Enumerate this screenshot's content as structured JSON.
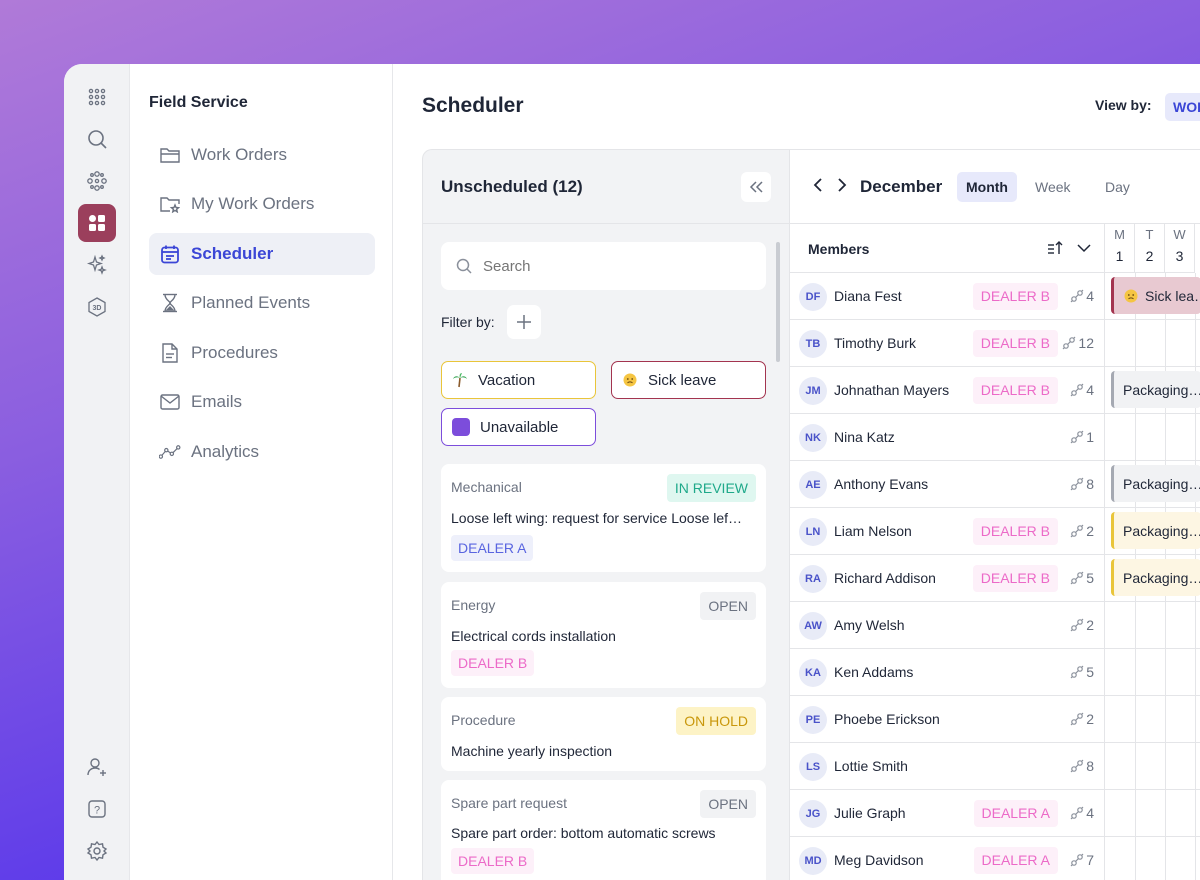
{
  "app": {
    "section_title": "Field Service"
  },
  "rail": {
    "icons": [
      "apps-grid-icon",
      "search-icon",
      "modules-icon",
      "dashboard-icon",
      "sparkles-icon",
      "3d-icon"
    ],
    "bottom_icons": [
      "add-user-icon",
      "help-icon",
      "settings-icon"
    ]
  },
  "nav": {
    "items": [
      {
        "label": "Work Orders",
        "icon": "folder-icon"
      },
      {
        "label": "My Work Orders",
        "icon": "folder-star-icon"
      },
      {
        "label": "Scheduler",
        "icon": "calendar-icon"
      },
      {
        "label": "Planned Events",
        "icon": "hourglass-icon"
      },
      {
        "label": "Procedures",
        "icon": "document-icon"
      },
      {
        "label": "Emails",
        "icon": "mail-icon"
      },
      {
        "label": "Analytics",
        "icon": "analytics-icon"
      }
    ]
  },
  "header": {
    "title": "Scheduler",
    "viewby_label": "View by:",
    "viewby_value": "WOR"
  },
  "unscheduled": {
    "title": "Unscheduled (12)",
    "search_placeholder": "Search",
    "filter_label": "Filter by:",
    "chips": [
      {
        "label": "Vacation",
        "icon": "palm-tree-icon",
        "color": "#e9c53a"
      },
      {
        "label": "Sick leave",
        "icon": "sick-face-icon",
        "color": "#a3344f"
      },
      {
        "label": "Unavailable",
        "icon": "purple-square-icon",
        "color": "#7c4ddb"
      }
    ],
    "cards": [
      {
        "category": "Mechanical",
        "status": "IN REVIEW",
        "description": "Loose left wing: request for service Loose lef…",
        "tag": "DEALER A"
      },
      {
        "category": "Energy",
        "status": "OPEN",
        "description": "Electrical cords installation",
        "tag": "DEALER B"
      },
      {
        "category": "Procedure",
        "status": "ON HOLD",
        "description": "Machine yearly inspection",
        "tag": ""
      },
      {
        "category": "Spare part request",
        "status": "OPEN",
        "description": "Spare part order: bottom automatic screws",
        "tag": "DEALER B"
      }
    ]
  },
  "calendar": {
    "month": "December",
    "tabs": [
      "Month",
      "Week",
      "Day"
    ],
    "members_title": "Members",
    "days": [
      {
        "letter": "M",
        "num": "1"
      },
      {
        "letter": "T",
        "num": "2"
      },
      {
        "letter": "W",
        "num": "3"
      }
    ],
    "members": [
      {
        "initials": "DF",
        "name": "Diana Fest",
        "tag": "DEALER B",
        "count": "4"
      },
      {
        "initials": "TB",
        "name": "Timothy Burk",
        "tag": "DEALER B",
        "count": "12"
      },
      {
        "initials": "JM",
        "name": "Johnathan Mayers",
        "tag": "DEALER B",
        "count": "4"
      },
      {
        "initials": "NK",
        "name": "Nina Katz",
        "tag": "",
        "count": "1"
      },
      {
        "initials": "AE",
        "name": "Anthony Evans",
        "tag": "",
        "count": "8"
      },
      {
        "initials": "LN",
        "name": "Liam Nelson",
        "tag": "DEALER B",
        "count": "2"
      },
      {
        "initials": "RA",
        "name": "Richard Addison",
        "tag": "DEALER B",
        "count": "5"
      },
      {
        "initials": "AW",
        "name": "Amy Welsh",
        "tag": "",
        "count": "2"
      },
      {
        "initials": "KA",
        "name": "Ken Addams",
        "tag": "",
        "count": "5"
      },
      {
        "initials": "PE",
        "name": "Phoebe Erickson",
        "tag": "",
        "count": "2"
      },
      {
        "initials": "LS",
        "name": "Lottie Smith",
        "tag": "",
        "count": "8"
      },
      {
        "initials": "JG",
        "name": "Julie Graph",
        "tag": "DEALER A",
        "count": "4"
      },
      {
        "initials": "MD",
        "name": "Meg Davidson",
        "tag": "DEALER A",
        "count": "7"
      }
    ],
    "events": [
      {
        "label": "Sick lea…",
        "icon": "sick-face-icon"
      },
      {
        "label": "Packaging…"
      },
      {
        "label": "Packaging…"
      },
      {
        "label": "Packaging…"
      },
      {
        "label": "Packaging…"
      }
    ]
  }
}
